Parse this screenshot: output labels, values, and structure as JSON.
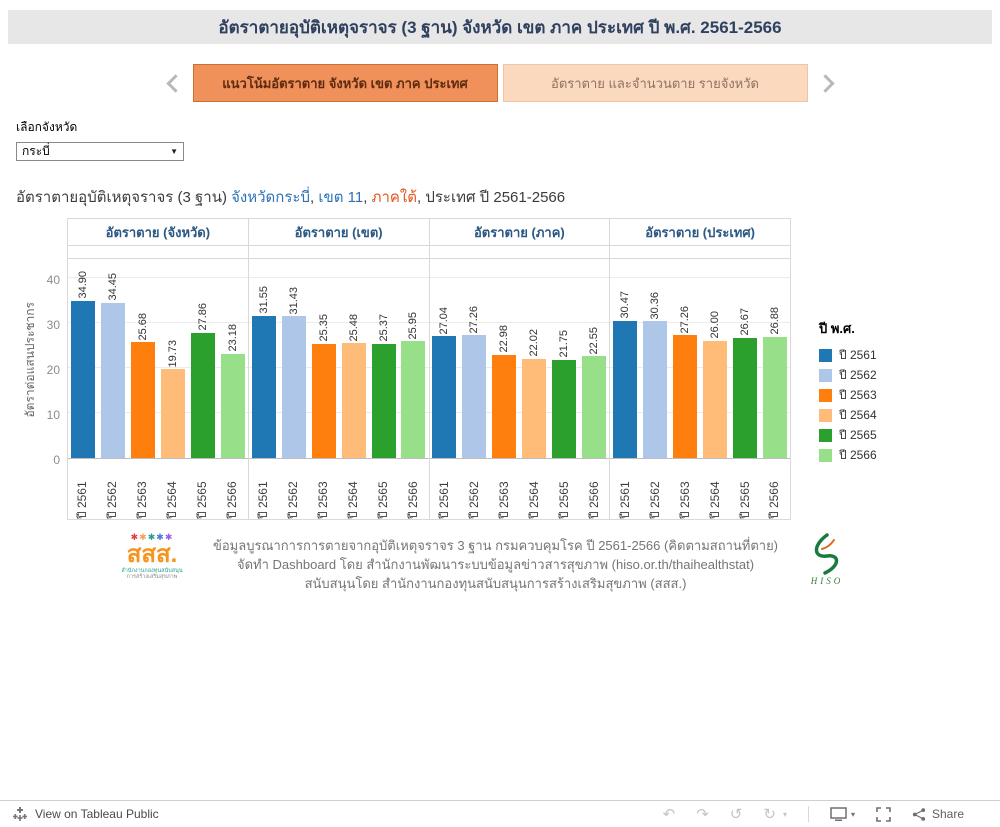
{
  "title": "อัตราตายอุบัติเหตุจราจร (3 ฐาน) จังหวัด เขต ภาค ประเทศ ปี พ.ศ. 2561-2566",
  "tabs": {
    "active": "แนวโน้มอัตราตาย จังหวัด เขต ภาค ประเทศ",
    "inactive": "อัตราตาย และจำนวนตาย รายจังหวัด"
  },
  "filter": {
    "label": "เลือกจังหวัด",
    "selected": "กระบี่"
  },
  "subtitle": {
    "part1": "อัตราตายอุบัติเหตุจราจร (3 ฐาน) ",
    "link_province": "จังหวัดกระบี่",
    "sep1": ", ",
    "link_zone": "เขต 11",
    "sep2": ", ",
    "link_region": "ภาคใต้",
    "part2": ", ประเทศ ปี 2561-2566"
  },
  "chart_data": {
    "type": "bar",
    "title": "อัตราตายอุบัติเหตุจราจร (3 ฐาน) จังหวัดกระบี่, เขต 11, ภาคใต้, ประเทศ ปี 2561-2566",
    "ylabel": "อัตราต่อแสนประชากร",
    "ylim": [
      0,
      44.4
    ],
    "yticks": [
      0,
      10,
      20,
      30,
      40
    ],
    "grid": true,
    "categories": [
      "ปี 2561",
      "ปี 2562",
      "ปี 2563",
      "ปี 2564",
      "ปี 2565",
      "ปี 2566"
    ],
    "series_colors": [
      "#1f77b4",
      "#aec7e8",
      "#ff7f0e",
      "#ffbb78",
      "#2ca02c",
      "#98df8a"
    ],
    "panels": [
      {
        "label": "อัตราตาย (จังหวัด)",
        "values": [
          34.9,
          34.45,
          25.68,
          19.73,
          27.86,
          23.18
        ],
        "labels": [
          "34.90",
          "34.45",
          "25.68",
          "19.73",
          "27.86",
          "23.18"
        ]
      },
      {
        "label": "อัตราตาย (เขต)",
        "values": [
          31.55,
          31.43,
          25.35,
          25.48,
          25.37,
          25.95
        ],
        "labels": [
          "31.55",
          "31.43",
          "25.35",
          "25.48",
          "25.37",
          "25.95"
        ]
      },
      {
        "label": "อัตราตาย (ภาค)",
        "values": [
          27.04,
          27.26,
          22.98,
          22.02,
          21.75,
          22.55
        ],
        "labels": [
          "27.04",
          "27.26",
          "22.98",
          "22.02",
          "21.75",
          "22.55"
        ]
      },
      {
        "label": "อัตราตาย (ประเทศ)",
        "values": [
          30.47,
          30.36,
          27.26,
          26.0,
          26.67,
          26.88
        ],
        "labels": [
          "30.47",
          "30.36",
          "27.26",
          "26.00",
          "26.67",
          "26.88"
        ]
      }
    ],
    "legend": {
      "title": "ปี พ.ศ.",
      "position": "right",
      "entries": [
        "ปี 2561",
        "ปี 2562",
        "ปี 2563",
        "ปี 2564",
        "ปี 2565",
        "ปี 2566"
      ]
    }
  },
  "footer": {
    "line1": "ข้อมูลบูรณาการการตายจากอุบัติเหตุจราจร 3 ฐาน กรมควบคุมโรค ปี 2561-2566 (คิดตามสถานที่ตาย)",
    "line2": "จัดทำ Dashboard โดย สำนักงานพัฒนาระบบข้อมูลข่าวสารสุขภาพ (hiso.or.th/thaihealthstat)",
    "line3": "สนับสนุนโดย สำนักงานกองทุนสนับสนุนการสร้างเสริมสุขภาพ (สสส.)",
    "sss_word": "สสส.",
    "sss_tiny1": "สำนักงานกองทุนสนับสนุน",
    "sss_tiny2": "การสร้างเสริมสุขภาพ",
    "hiso_letters": "HISO"
  },
  "toolbar": {
    "view_label": "View on Tableau Public",
    "share_label": "Share"
  },
  "colors": {
    "title_bar_bg": "#e7e7e7",
    "title_text": "#30405f",
    "tab_active_bg": "#f0905a",
    "tab_inactive_bg": "#fbd9be",
    "panel_header_text": "#2a5783",
    "link_blue": "#2e71b8",
    "link_orange": "#e2571f"
  }
}
